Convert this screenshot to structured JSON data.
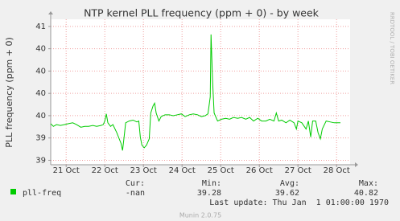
{
  "chart_data": {
    "type": "line",
    "title": "NTP kernel PLL frequency (ppm + 0) - by week",
    "y_label": "PLL frequency (ppm + 0)",
    "side_label": "RRDTOOL / TOBI OETIKER",
    "xlim": [
      20.6,
      28.35
    ],
    "ylim": [
      39.15,
      40.78
    ],
    "xticks": [
      {
        "value": 21,
        "label": "21 Oct"
      },
      {
        "value": 22,
        "label": "22 Oct"
      },
      {
        "value": 23,
        "label": "23 Oct"
      },
      {
        "value": 24,
        "label": "24 Oct"
      },
      {
        "value": 25,
        "label": "25 Oct"
      },
      {
        "value": 26,
        "label": "26 Oct"
      },
      {
        "value": 27,
        "label": "27 Oct"
      },
      {
        "value": 28,
        "label": "28 Oct"
      }
    ],
    "yticks": [
      {
        "value": 39.2,
        "label": "39"
      },
      {
        "value": 39.45,
        "label": "39"
      },
      {
        "value": 39.7,
        "label": "40"
      },
      {
        "value": 39.95,
        "label": "40"
      },
      {
        "value": 40.2,
        "label": "40"
      },
      {
        "value": 40.45,
        "label": "40"
      },
      {
        "value": 40.7,
        "label": "41"
      }
    ],
    "grid": true,
    "x": [
      20.6,
      20.67,
      20.75,
      20.85,
      20.96,
      21.06,
      21.17,
      21.27,
      21.38,
      21.48,
      21.58,
      21.69,
      21.79,
      21.9,
      21.96,
      22,
      22.04,
      22.08,
      22.15,
      22.21,
      22.31,
      22.42,
      22.46,
      22.5,
      22.54,
      22.63,
      22.73,
      22.83,
      22.88,
      22.92,
      22.96,
      23.02,
      23.08,
      23.15,
      23.19,
      23.25,
      23.29,
      23.33,
      23.4,
      23.46,
      23.56,
      23.67,
      23.77,
      23.88,
      23.98,
      24.08,
      24.19,
      24.29,
      24.4,
      24.5,
      24.6,
      24.67,
      24.73,
      24.75,
      24.79,
      24.83,
      24.92,
      25.02,
      25.13,
      25.23,
      25.33,
      25.44,
      25.54,
      25.65,
      25.75,
      25.85,
      25.96,
      26.06,
      26.17,
      26.27,
      26.38,
      26.44,
      26.5,
      26.58,
      26.69,
      26.79,
      26.9,
      26.96,
      27,
      27.1,
      27.21,
      27.27,
      27.33,
      27.38,
      27.46,
      27.52,
      27.58,
      27.63,
      27.73,
      27.83,
      27.94,
      28.04,
      28.1
    ],
    "series": [
      {
        "name": "pll-freq",
        "color": "#00cc00",
        "values": [
          39.61,
          39.58,
          39.6,
          39.59,
          39.6,
          39.61,
          39.62,
          39.6,
          39.57,
          39.58,
          39.58,
          39.59,
          39.58,
          39.59,
          39.6,
          39.64,
          39.72,
          39.62,
          39.58,
          39.6,
          39.51,
          39.39,
          39.31,
          39.46,
          39.62,
          39.64,
          39.65,
          39.63,
          39.64,
          39.46,
          39.37,
          39.34,
          39.37,
          39.44,
          39.73,
          39.81,
          39.84,
          39.73,
          39.64,
          39.69,
          39.71,
          39.71,
          39.7,
          39.71,
          39.72,
          39.69,
          39.71,
          39.72,
          39.71,
          39.69,
          39.7,
          39.72,
          39.91,
          40.61,
          40.09,
          39.73,
          39.64,
          39.66,
          39.67,
          39.66,
          39.68,
          39.67,
          39.68,
          39.66,
          39.68,
          39.64,
          39.67,
          39.64,
          39.64,
          39.66,
          39.64,
          39.73,
          39.64,
          39.65,
          39.62,
          39.65,
          39.62,
          39.55,
          39.64,
          39.62,
          39.55,
          39.64,
          39.46,
          39.64,
          39.64,
          39.51,
          39.44,
          39.55,
          39.64,
          39.63,
          39.62,
          39.62,
          39.62
        ]
      }
    ],
    "legend_headers": [
      "Cur:",
      "Min:",
      "Avg:",
      "Max:"
    ],
    "legend_values": [
      "-nan",
      "39.28",
      "39.62",
      "40.82"
    ],
    "last_update": "Last update: Thu Jan  1 01:00:00 1970",
    "footer": "Munin 2.0.75"
  }
}
